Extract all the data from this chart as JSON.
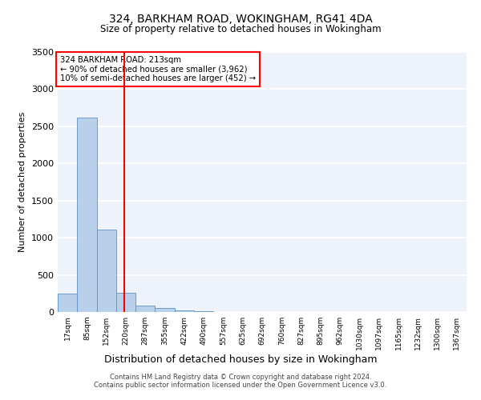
{
  "title": "324, BARKHAM ROAD, WOKINGHAM, RG41 4DA",
  "subtitle": "Size of property relative to detached houses in Wokingham",
  "xlabel": "Distribution of detached houses by size in Wokingham",
  "ylabel": "Number of detached properties",
  "bin_labels": [
    "17sqm",
    "85sqm",
    "152sqm",
    "220sqm",
    "287sqm",
    "355sqm",
    "422sqm",
    "490sqm",
    "557sqm",
    "625sqm",
    "692sqm",
    "760sqm",
    "827sqm",
    "895sqm",
    "962sqm",
    "1030sqm",
    "1097sqm",
    "1165sqm",
    "1232sqm",
    "1300sqm",
    "1367sqm"
  ],
  "bar_heights": [
    250,
    2620,
    1110,
    255,
    90,
    50,
    25,
    10,
    3,
    1,
    1,
    0,
    0,
    0,
    0,
    0,
    0,
    0,
    0,
    0,
    0
  ],
  "bar_color": "#b8d0ea",
  "bar_edge_color": "#5b8fc9",
  "property_line_x": 2.9,
  "annotation_text": "324 BARKHAM ROAD: 213sqm\n← 90% of detached houses are smaller (3,962)\n10% of semi-detached houses are larger (452) →",
  "annotation_box_color": "white",
  "annotation_box_edge_color": "red",
  "vline_color": "red",
  "ylim": [
    0,
    3500
  ],
  "yticks": [
    0,
    500,
    1000,
    1500,
    2000,
    2500,
    3000,
    3500
  ],
  "footer_line1": "Contains HM Land Registry data © Crown copyright and database right 2024.",
  "footer_line2": "Contains public sector information licensed under the Open Government Licence v3.0.",
  "background_color": "#eef2fb",
  "grid_color": "white"
}
